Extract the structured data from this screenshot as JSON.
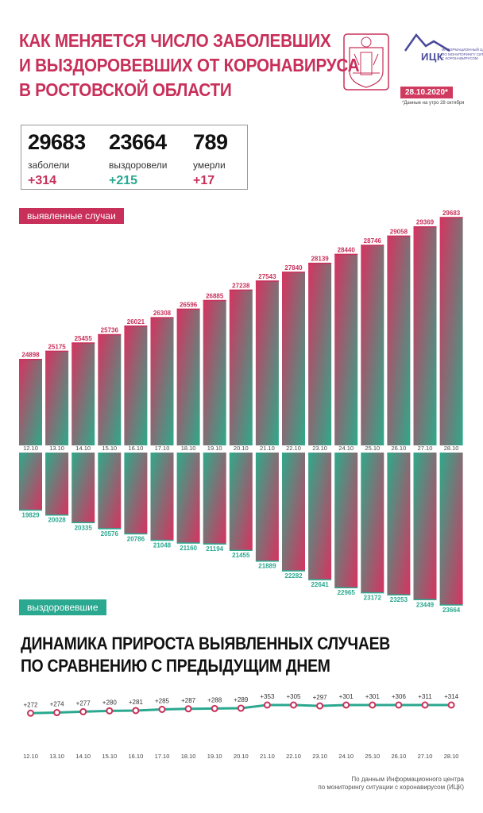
{
  "header": {
    "title_lines": [
      "КАК МЕНЯЕТСЯ ЧИСЛО ЗАБОЛЕВШИХ",
      "И ВЫЗДОРОВЕВШИХ ОТ КОРОНАВИРУСА",
      "В РОСТОВСКОЙ ОБЛАСТИ"
    ],
    "logo_text": "ИЦК",
    "logo_sub": "ИНФОРМАЦИОННЫЙ ЦЕНТР\nПО МОНИТОРИНГУ СИТУАЦИИ\nС КОРОНАВИРУСОМ",
    "date_badge": "28.10.2020*",
    "date_note": "*Данные на утро 28 октября"
  },
  "stats": [
    {
      "value": "29683",
      "label": "заболели",
      "delta": "+314"
    },
    {
      "value": "23664",
      "label": "выздоровели",
      "delta": "+215"
    },
    {
      "value": "789",
      "label": "умерли",
      "delta": "+17"
    }
  ],
  "colors": {
    "accent": "#c8305a",
    "recovered": "#2aa890",
    "line": "#2aa890",
    "marker": "#c8305a"
  },
  "labels": {
    "cases_pill": "выявленные случаи",
    "recovered_pill": "выздоровевшие",
    "dynamics_title_lines": [
      "ДИНАМИКА ПРИРОСТА ВЫЯВЛЕННЫХ СЛУЧАЕВ",
      "ПО СРАВНЕНИЮ С ПРЕДЫДУЩИМ ДНЕМ"
    ],
    "source_lines": [
      "По данным Информационного центра",
      "по мониторингу ситуации с коронавирусом (ИЦК)"
    ]
  },
  "chart_data": [
    {
      "type": "bar",
      "categories": [
        "12.10",
        "13.10",
        "14.10",
        "15.10",
        "16.10",
        "17.10",
        "18.10",
        "19.10",
        "20.10",
        "21.10",
        "22.10",
        "23.10",
        "24.10",
        "25.10",
        "26.10",
        "27.10",
        "28.10"
      ],
      "series": [
        {
          "name": "выявленные случаи",
          "values": [
            24898,
            25175,
            25455,
            25736,
            26021,
            26308,
            26596,
            26885,
            27238,
            27543,
            27840,
            28139,
            28440,
            28746,
            29058,
            29369,
            29683
          ]
        },
        {
          "name": "выздоровевшие",
          "values": [
            19829,
            20028,
            20335,
            20576,
            20786,
            21048,
            21160,
            21194,
            21455,
            21889,
            22282,
            22641,
            22965,
            23172,
            23253,
            23449,
            23664
          ]
        }
      ]
    },
    {
      "type": "line",
      "categories": [
        "12.10",
        "13.10",
        "14.10",
        "15.10",
        "16.10",
        "17.10",
        "18.10",
        "19.10",
        "20.10",
        "21.10",
        "22.10",
        "23.10",
        "24.10",
        "25.10",
        "26.10",
        "27.10",
        "28.10"
      ],
      "values": [
        272,
        274,
        277,
        280,
        281,
        285,
        287,
        288,
        289,
        353,
        305,
        297,
        301,
        301,
        306,
        311,
        314
      ],
      "value_labels": [
        "+272",
        "+274",
        "+277",
        "+280",
        "+281",
        "+285",
        "+287",
        "+288",
        "+289",
        "+353",
        "+305",
        "+297",
        "+301",
        "+301",
        "+306",
        "+311",
        "+314"
      ]
    }
  ]
}
